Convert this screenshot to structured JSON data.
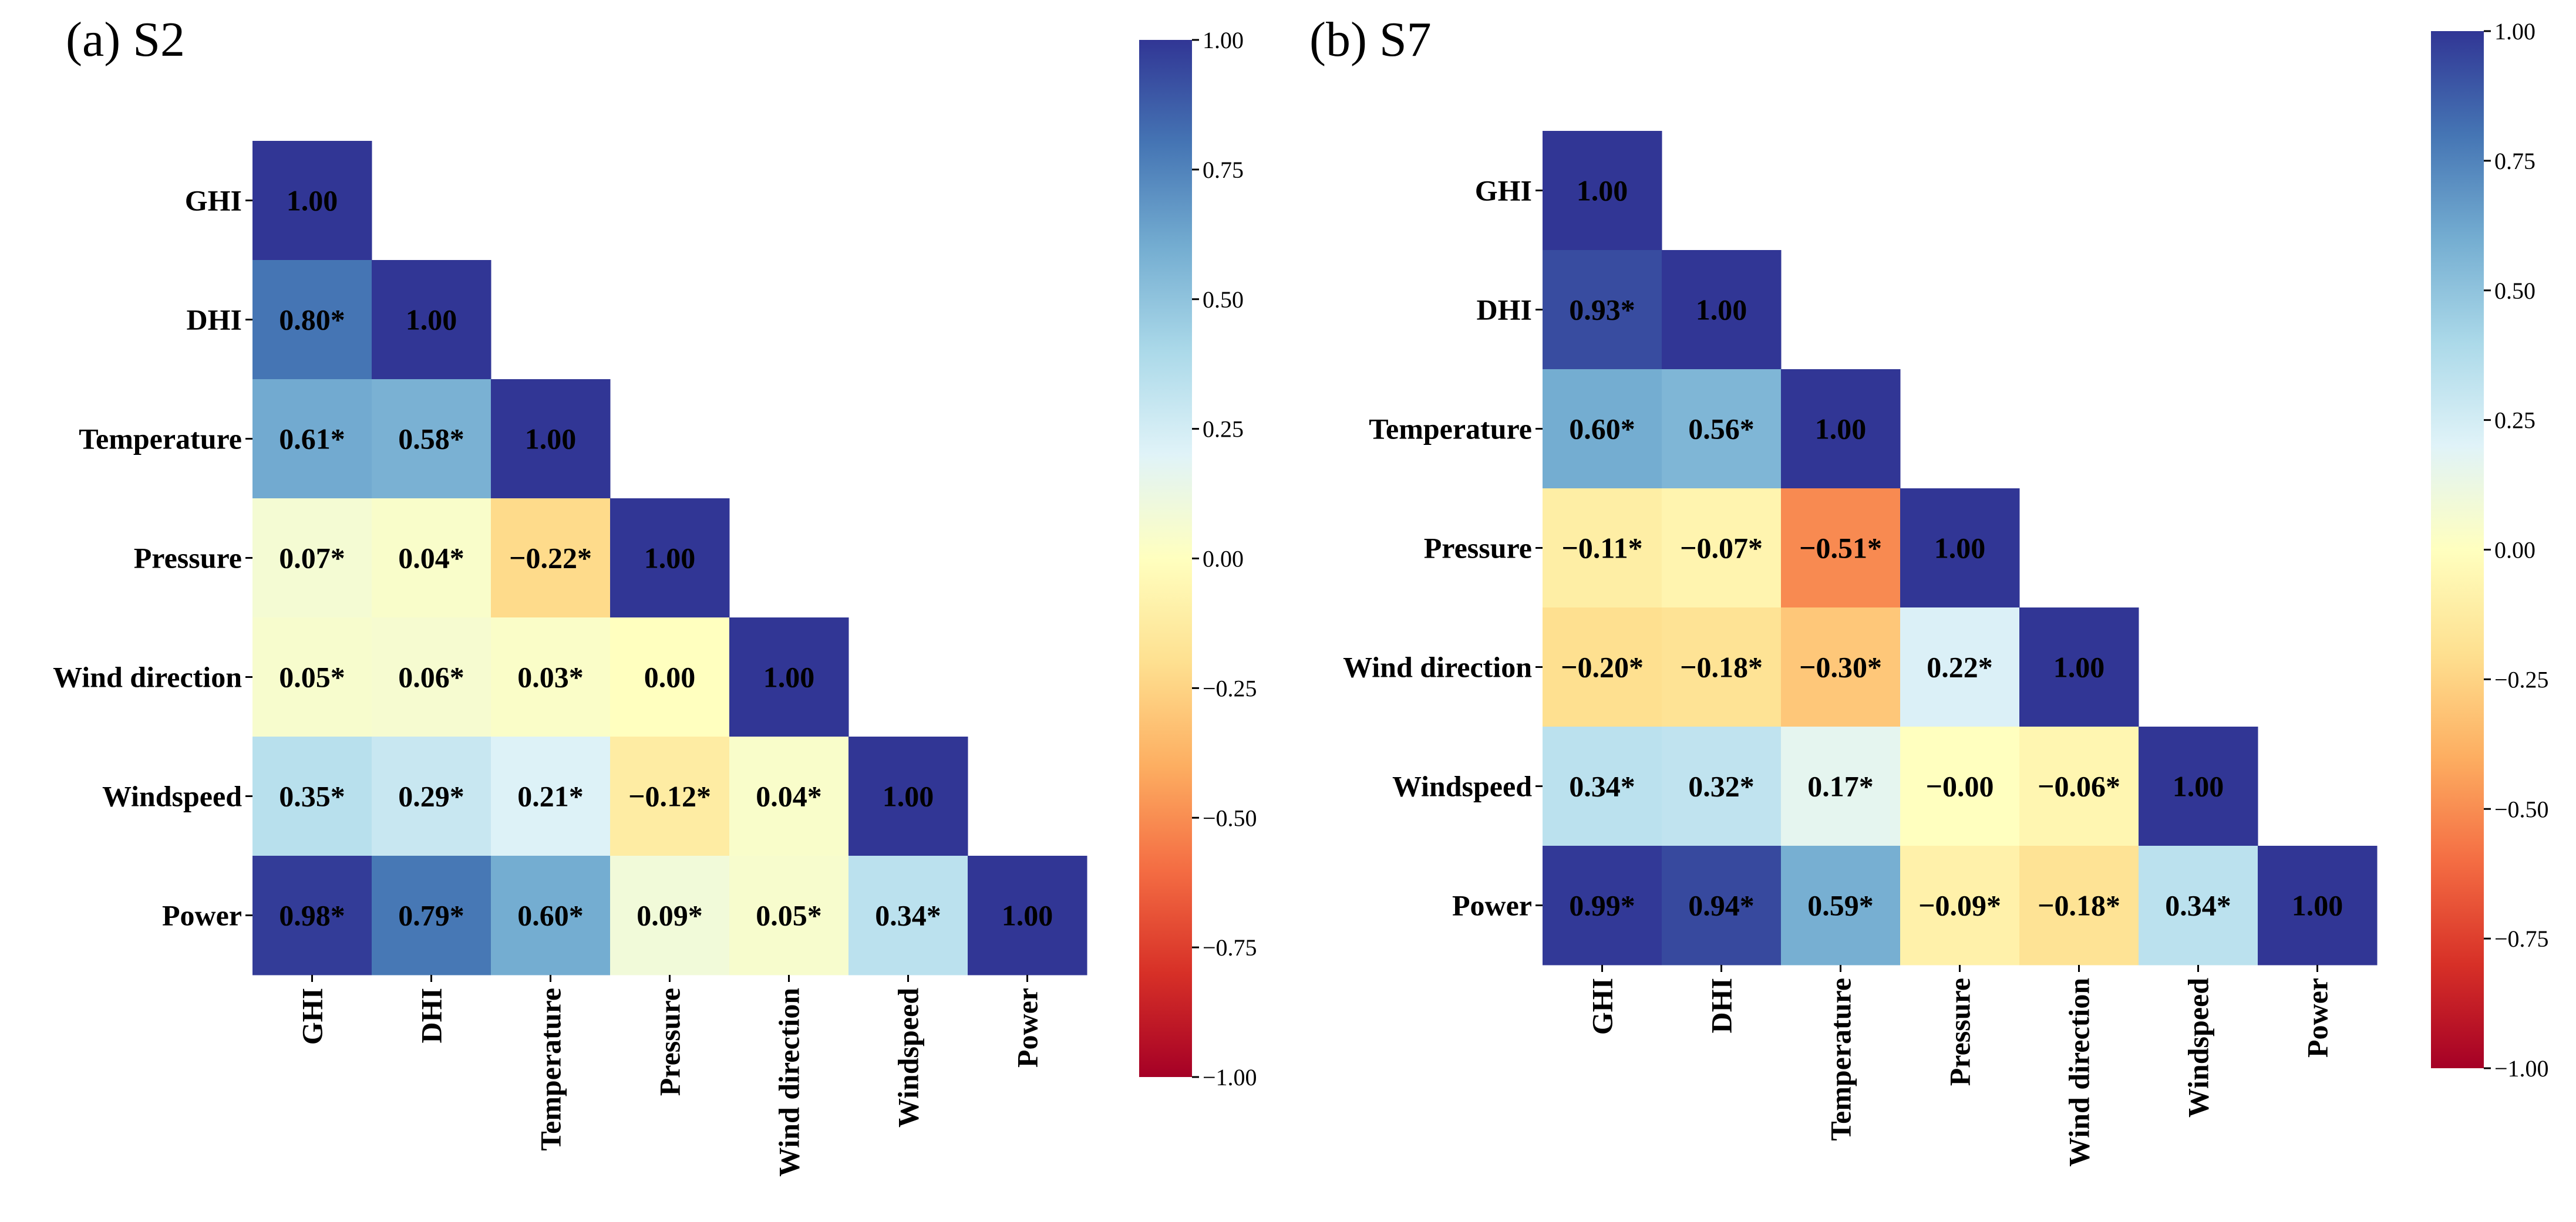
{
  "chart_data": [
    {
      "type": "heatmap",
      "title": "(a) S2",
      "variables": [
        "GHI",
        "DHI",
        "Temperature",
        "Pressure",
        "Wind direction",
        "Windspeed",
        "Power"
      ],
      "matrix_lower": [
        [
          1.0
        ],
        [
          0.8,
          1.0
        ],
        [
          0.61,
          0.58,
          1.0
        ],
        [
          0.07,
          0.04,
          -0.22,
          1.0
        ],
        [
          0.05,
          0.06,
          0.03,
          0.0,
          1.0
        ],
        [
          0.35,
          0.29,
          0.21,
          -0.12,
          0.04,
          1.0
        ],
        [
          0.98,
          0.79,
          0.6,
          0.09,
          0.05,
          0.34,
          1.0
        ]
      ],
      "labels_lower": [
        [
          "1.00"
        ],
        [
          "0.80*",
          "1.00"
        ],
        [
          "0.61*",
          "0.58*",
          "1.00"
        ],
        [
          "0.07*",
          "0.04*",
          "−0.22*",
          "1.00"
        ],
        [
          "0.05*",
          "0.06*",
          "0.03*",
          "0.00",
          "1.00"
        ],
        [
          "0.35*",
          "0.29*",
          "0.21*",
          "−0.12*",
          "0.04*",
          "1.00"
        ],
        [
          "0.98*",
          "0.79*",
          "0.60*",
          "0.09*",
          "0.05*",
          "0.34*",
          "1.00"
        ]
      ],
      "colorbar": {
        "range": [
          -1.0,
          1.0
        ],
        "ticks": [
          "1.00",
          "0.75",
          "0.50",
          "0.25",
          "0.00",
          "−0.25",
          "−0.50",
          "−0.75",
          "−1.00"
        ],
        "colormap": "RdYlBu"
      }
    },
    {
      "type": "heatmap",
      "title": "(b) S7",
      "variables": [
        "GHI",
        "DHI",
        "Temperature",
        "Pressure",
        "Wind direction",
        "Windspeed",
        "Power"
      ],
      "matrix_lower": [
        [
          1.0
        ],
        [
          0.93,
          1.0
        ],
        [
          0.6,
          0.56,
          1.0
        ],
        [
          -0.11,
          -0.07,
          -0.51,
          1.0
        ],
        [
          -0.2,
          -0.18,
          -0.3,
          0.22,
          1.0
        ],
        [
          0.34,
          0.32,
          0.17,
          -0.0,
          -0.06,
          1.0
        ],
        [
          0.99,
          0.94,
          0.59,
          -0.09,
          -0.18,
          0.34,
          1.0
        ]
      ],
      "labels_lower": [
        [
          "1.00"
        ],
        [
          "0.93*",
          "1.00"
        ],
        [
          "0.60*",
          "0.56*",
          "1.00"
        ],
        [
          "−0.11*",
          "−0.07*",
          "−0.51*",
          "1.00"
        ],
        [
          "−0.20*",
          "−0.18*",
          "−0.30*",
          "0.22*",
          "1.00"
        ],
        [
          "0.34*",
          "0.32*",
          "0.17*",
          "−0.00",
          "−0.06*",
          "1.00"
        ],
        [
          "0.99*",
          "0.94*",
          "0.59*",
          "−0.09*",
          "−0.18*",
          "0.34*",
          "1.00"
        ]
      ],
      "colorbar": {
        "range": [
          -1.0,
          1.0
        ],
        "ticks": [
          "1.00",
          "0.75",
          "0.50",
          "0.25",
          "0.00",
          "−0.25",
          "−0.50",
          "−0.75",
          "−1.00"
        ],
        "colormap": "RdYlBu"
      }
    }
  ]
}
